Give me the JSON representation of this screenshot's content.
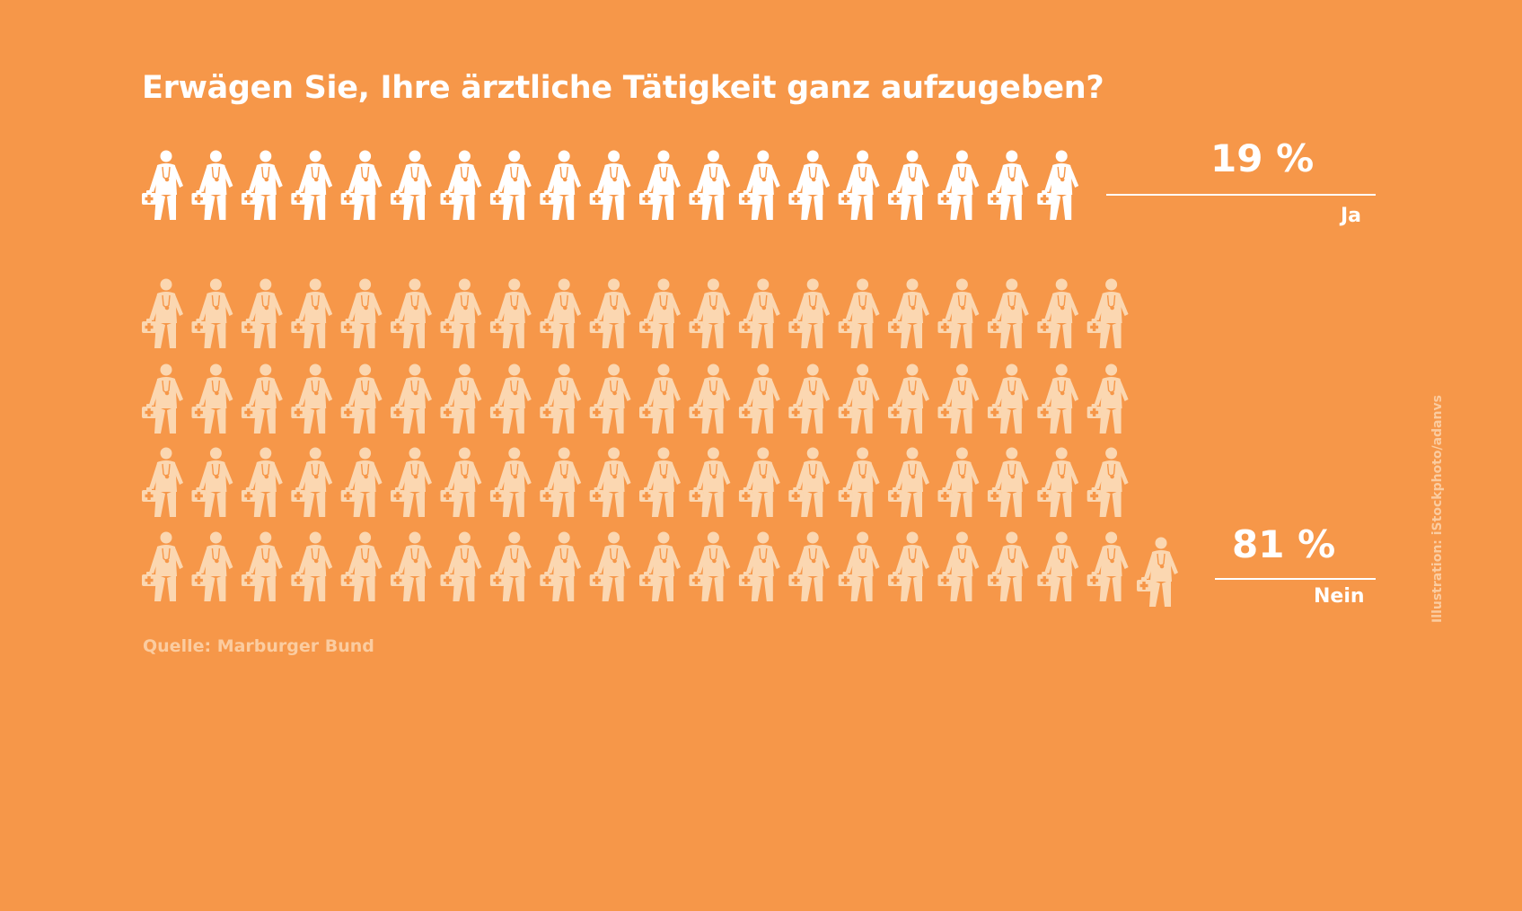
{
  "title": "Erwägen Sie, Ihre ärztliche Tätigkeit ganz aufzugeben?",
  "source": "Quelle: Marburger Bund",
  "credit": "Illustration: iStockphoto/adanvs",
  "colors": {
    "background": "#f69749",
    "ja_icon": "#ffffff",
    "nein_icon": "#fbd7b1",
    "text": "#ffffff",
    "muted_text": "#fbcca0"
  },
  "icon_name": "doctor-with-medical-bag-icon",
  "chart_data": {
    "type": "pictogram",
    "title": "Erwägen Sie, Ihre ärztliche Tätigkeit ganz aufzugeben?",
    "unit": "%",
    "icons_per_percent": 1,
    "categories": [
      "Ja",
      "Nein"
    ],
    "values": [
      19,
      81
    ],
    "value_labels": [
      "19 %",
      "81 %"
    ],
    "series": [
      {
        "name": "Ja",
        "value": 19,
        "label": "19 %",
        "color": "#ffffff"
      },
      {
        "name": "Nein",
        "value": 81,
        "label": "81 %",
        "color": "#fbd7b1"
      }
    ]
  }
}
